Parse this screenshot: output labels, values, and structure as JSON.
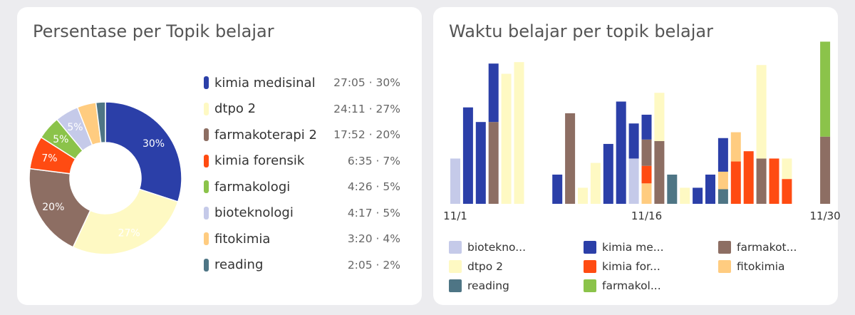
{
  "left_card": {
    "title": "Persentase per Topik belajar"
  },
  "right_card": {
    "title": "Waktu belajar per topik belajar"
  },
  "colors": {
    "kimia medisinal": "#2b3fa8",
    "dtpo 2": "#fef9c3",
    "farmakoterapi 2": "#8d6e63",
    "kimia forensik": "#ff4b12",
    "farmakologi": "#8bc34a",
    "bioteknologi": "#c5cae9",
    "fitokimia": "#ffcc80",
    "reading": "#4e7585"
  },
  "chart_data": [
    {
      "type": "pie",
      "title": "Persentase per Topik belajar",
      "donut": true,
      "legend": [
        {
          "name": "kimia medisinal",
          "time": "27:05",
          "pct_label": "30%",
          "percent": 30
        },
        {
          "name": "dtpo 2",
          "time": "24:11",
          "pct_label": "27%",
          "percent": 27
        },
        {
          "name": "farmakoterapi 2",
          "time": "17:52",
          "pct_label": "20%",
          "percent": 20
        },
        {
          "name": "kimia forensik",
          "time": "6:35",
          "pct_label": "7%",
          "percent": 7
        },
        {
          "name": "farmakologi",
          "time": "4:26",
          "pct_label": "5%",
          "percent": 5
        },
        {
          "name": "bioteknologi",
          "time": "4:17",
          "pct_label": "5%",
          "percent": 5
        },
        {
          "name": "fitokimia",
          "time": "3:20",
          "pct_label": "4%",
          "percent": 4
        },
        {
          "name": "reading",
          "time": "2:05",
          "pct_label": "2%",
          "percent": 2
        }
      ],
      "value_separator": "·",
      "legend_placement": "right"
    },
    {
      "type": "bar",
      "title": "Waktu belajar per topik belajar",
      "x_tick_labels": [
        "11/1",
        "11/16",
        "11/30"
      ],
      "tick_days": [
        1,
        16,
        30
      ],
      "ylim": [
        0,
        1.0
      ],
      "days": [
        {
          "day": 1,
          "segments": [
            [
              "bioteknologi",
              0.31
            ]
          ]
        },
        {
          "day": 2,
          "segments": [
            [
              "kimia medisinal",
              0.66
            ]
          ]
        },
        {
          "day": 3,
          "segments": [
            [
              "kimia medisinal",
              0.56
            ]
          ]
        },
        {
          "day": 4,
          "segments": [
            [
              "farmakoterapi 2",
              0.56
            ],
            [
              "kimia medisinal",
              0.4
            ]
          ]
        },
        {
          "day": 5,
          "segments": [
            [
              "dtpo 2",
              0.89
            ]
          ]
        },
        {
          "day": 6,
          "segments": [
            [
              "dtpo 2",
              0.97
            ]
          ]
        },
        {
          "day": 7,
          "segments": []
        },
        {
          "day": 8,
          "segments": []
        },
        {
          "day": 9,
          "segments": [
            [
              "kimia medisinal",
              0.2
            ]
          ]
        },
        {
          "day": 10,
          "segments": [
            [
              "farmakoterapi 2",
              0.62
            ]
          ]
        },
        {
          "day": 11,
          "segments": [
            [
              "dtpo 2",
              0.11
            ]
          ]
        },
        {
          "day": 12,
          "segments": [
            [
              "dtpo 2",
              0.28
            ]
          ]
        },
        {
          "day": 13,
          "segments": [
            [
              "kimia medisinal",
              0.41
            ]
          ]
        },
        {
          "day": 14,
          "segments": [
            [
              "kimia medisinal",
              0.7
            ]
          ]
        },
        {
          "day": 15,
          "segments": [
            [
              "bioteknologi",
              0.31
            ],
            [
              "kimia medisinal",
              0.24
            ]
          ]
        },
        {
          "day": 16,
          "segments": [
            [
              "fitokimia",
              0.14
            ],
            [
              "kimia forensik",
              0.12
            ],
            [
              "farmakoterapi 2",
              0.18
            ],
            [
              "kimia medisinal",
              0.17
            ]
          ]
        },
        {
          "day": 17,
          "segments": [
            [
              "farmakoterapi 2",
              0.43
            ],
            [
              "dtpo 2",
              0.33
            ]
          ]
        },
        {
          "day": 18,
          "segments": [
            [
              "reading",
              0.2
            ]
          ]
        },
        {
          "day": 19,
          "segments": [
            [
              "dtpo 2",
              0.11
            ]
          ]
        },
        {
          "day": 20,
          "segments": [
            [
              "kimia medisinal",
              0.11
            ]
          ]
        },
        {
          "day": 21,
          "segments": [
            [
              "kimia medisinal",
              0.2
            ]
          ]
        },
        {
          "day": 22,
          "segments": [
            [
              "reading",
              0.1
            ],
            [
              "fitokimia",
              0.12
            ],
            [
              "kimia medisinal",
              0.23
            ]
          ]
        },
        {
          "day": 23,
          "segments": [
            [
              "kimia forensik",
              0.29
            ],
            [
              "fitokimia",
              0.2
            ]
          ]
        },
        {
          "day": 24,
          "segments": [
            [
              "kimia forensik",
              0.36
            ]
          ]
        },
        {
          "day": 25,
          "segments": [
            [
              "farmakoterapi 2",
              0.31
            ],
            [
              "dtpo 2",
              0.64
            ]
          ]
        },
        {
          "day": 26,
          "segments": [
            [
              "kimia forensik",
              0.31
            ]
          ]
        },
        {
          "day": 27,
          "segments": [
            [
              "kimia forensik",
              0.17
            ],
            [
              "dtpo 2",
              0.14
            ]
          ]
        },
        {
          "day": 28,
          "segments": []
        },
        {
          "day": 29,
          "segments": []
        },
        {
          "day": 30,
          "segments": [
            [
              "farmakoterapi 2",
              0.46
            ],
            [
              "farmakologi",
              0.65
            ]
          ]
        }
      ],
      "legend": [
        {
          "key": "bioteknologi",
          "label": "biotekno..."
        },
        {
          "key": "kimia medisinal",
          "label": "kimia me..."
        },
        {
          "key": "farmakoterapi 2",
          "label": "farmakot..."
        },
        {
          "key": "dtpo 2",
          "label": "dtpo 2"
        },
        {
          "key": "kimia forensik",
          "label": "kimia for..."
        },
        {
          "key": "fitokimia",
          "label": "fitokimia"
        },
        {
          "key": "reading",
          "label": "reading"
        },
        {
          "key": "farmakologi",
          "label": "farmakol..."
        }
      ],
      "legend_placement": "bottom"
    }
  ]
}
